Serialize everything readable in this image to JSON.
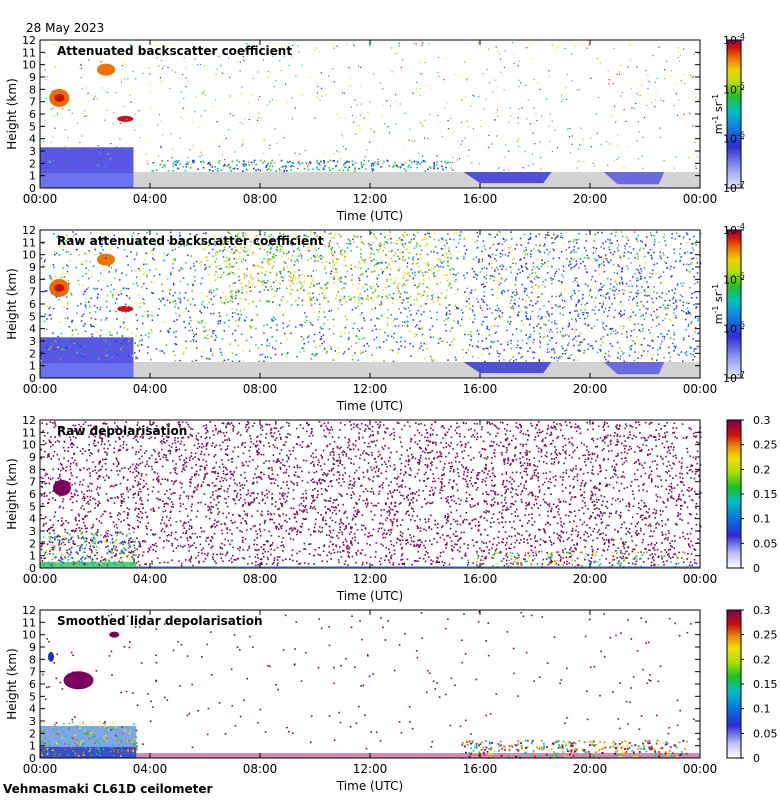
{
  "date_label": "28 May 2023",
  "site_label": "Vehmasmaki CL61D ceilometer",
  "colors": {
    "clear_air_gray": "#d3d3d3",
    "deep_blue": "#1f2dd6",
    "light_blue": "#aeb8f5",
    "cyan": "#00c8d0",
    "green": "#3bb83b",
    "yellow": "#f2e600",
    "orange": "#f08a00",
    "red": "#d21c1c",
    "purple": "#7b005f"
  },
  "chart_data": [
    {
      "type": "heatmap",
      "title": "Attenuated backscatter coefficient",
      "xlabel": "Time (UTC)",
      "ylabel": "Height (km)",
      "xticks": [
        "00:00",
        "04:00",
        "08:00",
        "12:00",
        "16:00",
        "20:00",
        "00:00"
      ],
      "yticks": [
        "0",
        "1",
        "2",
        "3",
        "4",
        "5",
        "6",
        "7",
        "8",
        "9",
        "10",
        "11",
        "12"
      ],
      "ylim": [
        0,
        12
      ],
      "xlim_hours": [
        0,
        24
      ],
      "colorbar": {
        "scale": "log",
        "ticks": [
          {
            "base": "10",
            "exp": "-7"
          },
          {
            "base": "10",
            "exp": "-6"
          },
          {
            "base": "10",
            "exp": "-5"
          },
          {
            "base": "10",
            "exp": "-4"
          }
        ],
        "unit": "m-1 sr-1",
        "unit_parts": {
          "m": "m",
          "m_exp": "-1",
          "sr": " sr",
          "sr_exp": "-1"
        }
      }
    },
    {
      "type": "heatmap",
      "title": "Raw attenuated backscatter coefficient",
      "xlabel": "Time (UTC)",
      "ylabel": "Height (km)",
      "xticks": [
        "00:00",
        "04:00",
        "08:00",
        "12:00",
        "16:00",
        "20:00",
        "00:00"
      ],
      "yticks": [
        "0",
        "1",
        "2",
        "3",
        "4",
        "5",
        "6",
        "7",
        "8",
        "9",
        "10",
        "11",
        "12"
      ],
      "ylim": [
        0,
        12
      ],
      "xlim_hours": [
        0,
        24
      ],
      "colorbar": {
        "scale": "log",
        "ticks": [
          {
            "base": "10",
            "exp": "-7"
          },
          {
            "base": "10",
            "exp": "-6"
          },
          {
            "base": "10",
            "exp": "-5"
          },
          {
            "base": "10",
            "exp": "-4"
          }
        ],
        "unit": "m-1 sr-1",
        "unit_parts": {
          "m": "m",
          "m_exp": "-1",
          "sr": " sr",
          "sr_exp": "-1"
        }
      }
    },
    {
      "type": "heatmap",
      "title": "Raw depolarisation",
      "xlabel": "Time (UTC)",
      "ylabel": "Height (km)",
      "xticks": [
        "00:00",
        "04:00",
        "08:00",
        "12:00",
        "16:00",
        "20:00",
        "00:00"
      ],
      "yticks": [
        "0",
        "1",
        "2",
        "3",
        "4",
        "5",
        "6",
        "7",
        "8",
        "9",
        "10",
        "11",
        "12"
      ],
      "ylim": [
        0,
        12
      ],
      "xlim_hours": [
        0,
        24
      ],
      "colorbar": {
        "scale": "linear",
        "ticks": [
          "0",
          "0.05",
          "0.1",
          "0.15",
          "0.2",
          "0.25",
          "0.3"
        ],
        "range": [
          0,
          0.3
        ]
      }
    },
    {
      "type": "heatmap",
      "title": "Smoothed lidar depolarisation",
      "xlabel": "Time (UTC)",
      "ylabel": "Height (km)",
      "xticks": [
        "00:00",
        "04:00",
        "08:00",
        "12:00",
        "16:00",
        "20:00",
        "00:00"
      ],
      "yticks": [
        "0",
        "1",
        "2",
        "3",
        "4",
        "5",
        "6",
        "7",
        "8",
        "9",
        "10",
        "11",
        "12"
      ],
      "ylim": [
        0,
        12
      ],
      "xlim_hours": [
        0,
        24
      ],
      "colorbar": {
        "scale": "linear",
        "ticks": [
          "0",
          "0.05",
          "0.1",
          "0.15",
          "0.2",
          "0.25",
          "0.3"
        ],
        "range": [
          0,
          0.3
        ]
      }
    }
  ]
}
